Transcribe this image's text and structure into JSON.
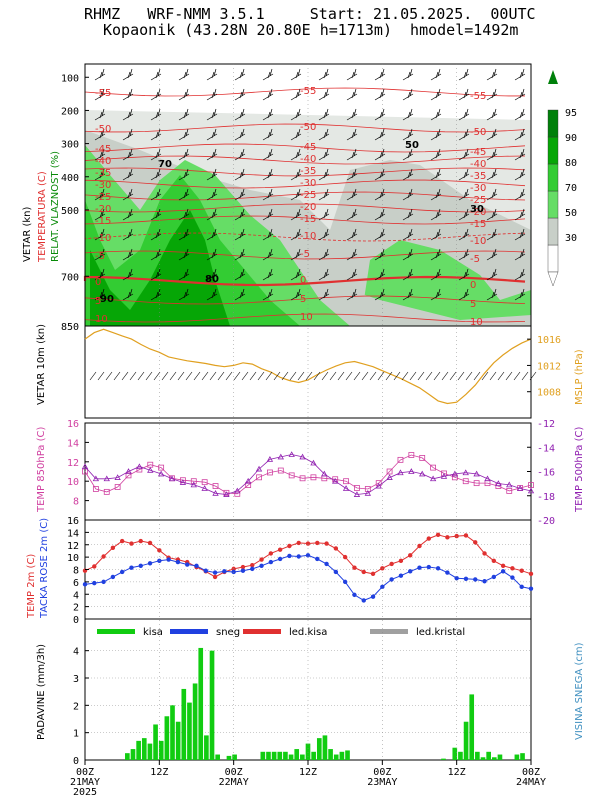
{
  "header": {
    "line1": "RHMZ   WRF-NMM 3.5.1     Start: 21.05.2025.  00UTC",
    "line2": "Kopaonik (43.28N 20.80E h=1713m)  hmodel=1492m"
  },
  "colors": {
    "green1": "#06a606",
    "green2": "#33cc33",
    "green3": "#66dd66",
    "grey1": "#c8cfc8",
    "grey2": "#e4e8e4",
    "temp": "#e03030",
    "mslp": "#e0a020",
    "t850": "#d040a0",
    "t500": "#9020b0",
    "dew": "#2040e0",
    "snow": "#a0a0a0"
  },
  "chart_data": [
    {
      "type": "heatmap",
      "ylabel": [
        "VETAR (kn)",
        "TEMPERATURA (C)",
        "RELAT. VLAZNOST (%)"
      ],
      "pressure_ticks": [
        "100",
        "200",
        "300",
        "400",
        "500",
        "700",
        "850"
      ],
      "ylim": [
        100,
        850
      ],
      "colorbar_ticks": [
        "95",
        "90",
        "80",
        "70",
        "50",
        "30"
      ],
      "temperature_labels": [
        "-55",
        "-50",
        "-45",
        "-40",
        "-35",
        "-30",
        "-25",
        "-20",
        "-15",
        "-10",
        "-5",
        "0",
        "5",
        "10"
      ],
      "humidity_labels": [
        "90",
        "80",
        "70",
        "50",
        "30"
      ]
    },
    {
      "type": "line",
      "ylabel_left": "VETAR 10m (kn)",
      "ylabel_right": "MSLP (hPa)",
      "right_ticks": [
        "1016",
        "1012",
        "1008"
      ],
      "ylim_right": [
        1004,
        1018
      ],
      "series": [
        {
          "values": [
            1016,
            1017,
            1017.5,
            1017,
            1016.5,
            1016,
            1015.2,
            1014.5,
            1014,
            1013.3,
            1013,
            1012.7,
            1012.5,
            1012.3,
            1012,
            1011.8,
            1012,
            1012.4,
            1012.2,
            1011.5,
            1011,
            1010.2,
            1009.7,
            1009.4,
            1009.8,
            1010.6,
            1011.3,
            1011.9,
            1012.4,
            1012.6,
            1012.2,
            1011.8,
            1011.2,
            1010.6,
            1010,
            1009.3,
            1008.6,
            1007.6,
            1006.6,
            1006.2,
            1006.4,
            1007.6,
            1009,
            1010.8,
            1012.4,
            1013.6,
            1014.6,
            1015.4,
            1016
          ]
        }
      ]
    },
    {
      "type": "line",
      "ylabel_left": "TEMP 850hPa (C)",
      "ylabel_right": "TEMP 500hPa (C)",
      "left_ticks": [
        "16",
        "14",
        "12",
        "10",
        "8"
      ],
      "right_ticks": [
        "-12",
        "-14",
        "-16",
        "-18",
        "-20"
      ],
      "ylim_left": [
        6,
        16
      ],
      "ylim_right": [
        -20,
        -12
      ],
      "series": [
        {
          "values": [
            11,
            9.2,
            8.9,
            9.4,
            10.6,
            11.2,
            11.7,
            11.4,
            10.3,
            10.1,
            10,
            9.9,
            9.5,
            8.8,
            8.7,
            9.6,
            10.4,
            10.9,
            11.1,
            10.6,
            10.3,
            10.4,
            10.3,
            10.2,
            10,
            9.3,
            9.2,
            9.8,
            11,
            12.2,
            12.7,
            12.4,
            11.4,
            10.8,
            10.4,
            10,
            9.8,
            9.8,
            9.5,
            9,
            9.3,
            9.6
          ]
        },
        {
          "values": [
            -15.6,
            -16.6,
            -16.6,
            -16.5,
            -16,
            -15.6,
            -15.9,
            -16.2,
            -16.6,
            -16.9,
            -17.1,
            -17.4,
            -17.8,
            -17.9,
            -17.6,
            -16.8,
            -15.8,
            -15,
            -14.8,
            -14.6,
            -14.8,
            -15.3,
            -16.2,
            -16.8,
            -17.4,
            -17.9,
            -17.8,
            -17.2,
            -16.5,
            -16.1,
            -16,
            -16.2,
            -16.6,
            -16.4,
            -16.2,
            -16.1,
            -16.2,
            -16.6,
            -17,
            -17.1,
            -17.4,
            -17.6
          ]
        }
      ]
    },
    {
      "type": "line",
      "ylabel_left": [
        "TEMP 2m (C)",
        "TACKA ROSE 2m (C)"
      ],
      "left_ticks": [
        "16",
        "14",
        "12",
        "10",
        "8",
        "6",
        "4",
        "2",
        "0"
      ],
      "ylim": [
        0,
        16
      ],
      "series": [
        {
          "values": [
            7.8,
            8.5,
            10.1,
            11.5,
            12.6,
            12.2,
            12.6,
            12.3,
            11.1,
            9.9,
            9.6,
            9.2,
            8.4,
            7.7,
            6.8,
            7.6,
            8.1,
            8.4,
            8.7,
            9.6,
            10.6,
            11.2,
            11.8,
            12.3,
            12.2,
            12.3,
            12.2,
            11.4,
            10,
            8.3,
            7.6,
            7.3,
            8.2,
            8.9,
            9.4,
            10.3,
            11.8,
            13,
            13.6,
            13.2,
            13.4,
            13.5,
            12.4,
            10.6,
            9.4,
            8.6,
            8.2,
            7.8,
            7.3
          ]
        },
        {
          "values": [
            5.6,
            5.8,
            6,
            6.8,
            7.6,
            8.3,
            8.6,
            9,
            9.4,
            9.6,
            9.2,
            8.8,
            8.6,
            7.8,
            7.5,
            7.7,
            7.6,
            7.8,
            8.1,
            8.6,
            9.2,
            9.7,
            10.2,
            10.1,
            10.3,
            9.7,
            8.9,
            7.6,
            6,
            3.9,
            3,
            3.6,
            5.2,
            6.4,
            7,
            7.7,
            8.3,
            8.4,
            8.2,
            7.5,
            6.6,
            6.5,
            6.4,
            6.1,
            6.8,
            7.7,
            6.7,
            5.2,
            4.9
          ]
        }
      ]
    },
    {
      "type": "bar",
      "ylabel_left": "PADAVINE (mm/3h)",
      "ylabel_right": "VISINA SNEGA (cm)",
      "left_ticks": [
        "4",
        "3",
        "2",
        "1",
        "0"
      ],
      "ylim": [
        0,
        4.5
      ],
      "legend": [
        "kisa",
        "sneg",
        "led.kisa",
        "led.kristal"
      ],
      "x_ticks": [
        "00Z\n21MAY\n2025",
        "12Z",
        "00Z\n22MAY",
        "12Z",
        "00Z\n23MAY",
        "12Z",
        "00Z\n24MAY"
      ],
      "values": [
        0,
        0,
        0,
        0,
        0,
        0,
        0,
        0.25,
        0.4,
        0.7,
        0.8,
        0.6,
        1.3,
        0.7,
        1.6,
        2,
        1.4,
        2.6,
        2.1,
        2.8,
        4.1,
        0.9,
        4,
        0.2,
        0,
        0.15,
        0.2,
        0,
        0,
        0,
        0,
        0.3,
        0.3,
        0.3,
        0.3,
        0.3,
        0.2,
        0.4,
        0.2,
        0.6,
        0.3,
        0.8,
        0.9,
        0.4,
        0.2,
        0.3,
        0.35,
        0,
        0,
        0,
        0,
        0,
        0,
        0,
        0,
        0,
        0,
        0,
        0,
        0,
        0,
        0,
        0,
        0.05,
        0,
        0.45,
        0.3,
        1.4,
        2.4,
        0.3,
        0.1,
        0.3,
        0.1,
        0.2,
        0,
        0,
        0.2,
        0.25,
        0
      ]
    }
  ]
}
